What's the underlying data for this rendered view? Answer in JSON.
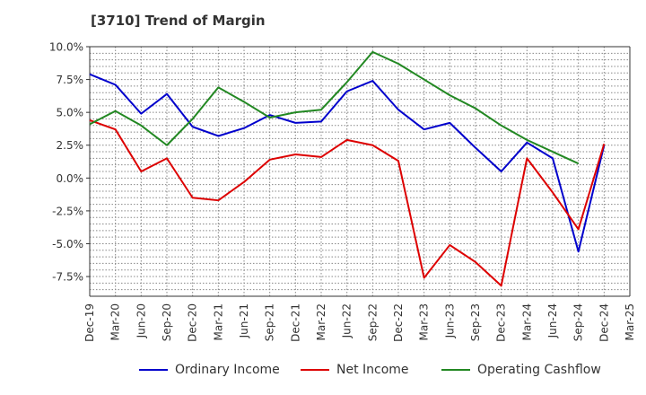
{
  "title": "[3710]  Trend of Margin",
  "chart_data": {
    "type": "line",
    "title": "[3710]  Trend of Margin",
    "xlabel": "",
    "ylabel": "",
    "categories": [
      "Dec-19",
      "Mar-20",
      "Jun-20",
      "Sep-20",
      "Dec-20",
      "Mar-21",
      "Jun-21",
      "Sep-21",
      "Dec-21",
      "Mar-22",
      "Jun-22",
      "Sep-22",
      "Dec-22",
      "Mar-23",
      "Jun-23",
      "Sep-23",
      "Dec-23",
      "Mar-24",
      "Jun-24",
      "Sep-24",
      "Dec-24",
      "Mar-25"
    ],
    "ylim": [
      -9.0,
      10.0
    ],
    "yticks": [
      10.0,
      7.5,
      5.0,
      2.5,
      0.0,
      -2.5,
      -5.0,
      -7.5
    ],
    "ytick_labels": [
      "10.0%",
      "7.5%",
      "5.0%",
      "2.5%",
      "0.0%",
      "-2.5%",
      "-5.0%",
      "-7.5%"
    ],
    "grid": true,
    "legend_position": "bottom",
    "series": [
      {
        "name": "Ordinary Income",
        "color": "#0000cc",
        "values": [
          7.9,
          7.1,
          4.9,
          6.4,
          3.9,
          3.2,
          3.8,
          4.8,
          4.2,
          4.3,
          6.6,
          7.4,
          5.2,
          3.7,
          4.2,
          2.3,
          0.5,
          2.7,
          1.5,
          -5.6,
          2.5,
          null
        ]
      },
      {
        "name": "Net Income",
        "color": "#dd0000",
        "values": [
          4.4,
          3.7,
          0.5,
          1.5,
          -1.5,
          -1.7,
          -0.3,
          1.4,
          1.8,
          1.6,
          2.9,
          2.5,
          1.3,
          -7.6,
          -5.1,
          -6.4,
          -8.2,
          1.5,
          -1.1,
          -3.9,
          2.6,
          null
        ]
      },
      {
        "name": "Operating Cashflow",
        "color": "#228822",
        "values": [
          4.1,
          5.1,
          4.0,
          2.5,
          4.5,
          6.9,
          5.8,
          4.6,
          5.0,
          5.2,
          7.3,
          9.6,
          8.7,
          7.5,
          6.3,
          5.3,
          4.0,
          2.9,
          2.0,
          1.1,
          null,
          null
        ]
      }
    ]
  }
}
